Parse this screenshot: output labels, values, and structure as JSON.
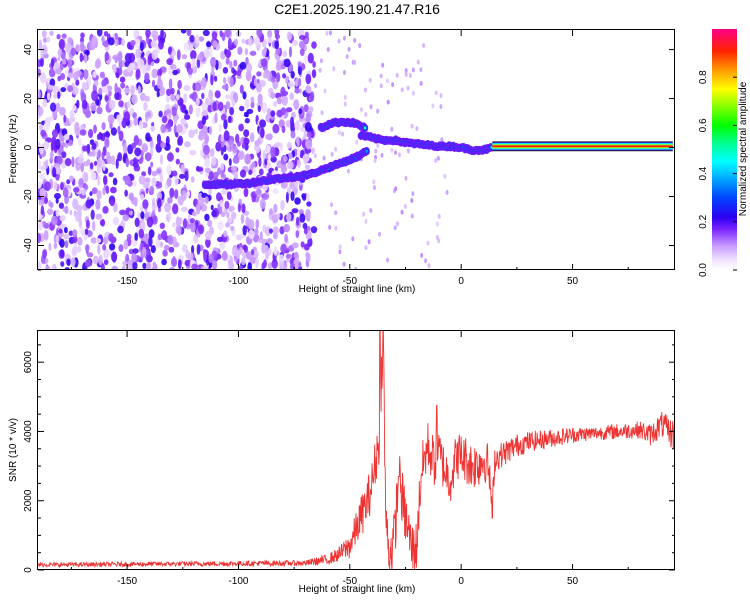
{
  "title": "C2E1.2025.190.21.47.R16",
  "chart_data": [
    {
      "type": "heatmap",
      "xlabel": "Height of straight line (km)",
      "ylabel": "Frequency (Hz)",
      "xlim": [
        -190,
        96
      ],
      "ylim": [
        -50,
        48
      ],
      "x_ticks": [
        -150,
        -100,
        -50,
        0,
        50
      ],
      "x_tick_labels": [
        "-150",
        "-100",
        "-50",
        "0",
        "50"
      ],
      "y_ticks": [
        -40,
        -20,
        0,
        20,
        40
      ],
      "y_tick_labels": [
        "-40",
        "-20",
        "0",
        "20",
        "40"
      ],
      "colorbar": {
        "label": "Normalized spectral amplitude",
        "range": [
          0,
          1
        ],
        "ticks": [
          0.0,
          0.2,
          0.4,
          0.6,
          0.8
        ],
        "tick_labels": [
          "0.0",
          "0.2",
          "0.4",
          "0.6",
          "0.8"
        ]
      },
      "noise_region_x": [
        -190,
        -66
      ],
      "trace_lower": {
        "x": [
          -115,
          -105,
          -95,
          -85,
          -75,
          -68,
          -62,
          -56,
          -50,
          -45,
          -42
        ],
        "y": [
          -15,
          -15,
          -14.5,
          -13,
          -12,
          -11,
          -9,
          -7,
          -5,
          -3,
          -1
        ]
      },
      "trace_upper": {
        "x": [
          -63,
          -58,
          -53,
          -48,
          -43
        ],
        "y": [
          8,
          10,
          10.5,
          10,
          8
        ]
      },
      "trace_merge": {
        "x": [
          -45,
          -40,
          -35,
          -30,
          -25,
          -20,
          -15,
          -10,
          -5,
          0,
          5,
          10,
          14
        ],
        "y": [
          5,
          4,
          3,
          3,
          2,
          1.5,
          1,
          0.5,
          0.5,
          0,
          -1,
          -1,
          0
        ]
      },
      "trace_constant": {
        "x_start": 14,
        "x_end": 95,
        "y": 0.5,
        "amplitude": 1.0
      }
    },
    {
      "type": "line",
      "xlabel": "Height of straight line (km)",
      "ylabel": "SNR (10 * v/v)",
      "xlim": [
        -190,
        96
      ],
      "ylim": [
        0,
        6900
      ],
      "x_ticks": [
        -150,
        -100,
        -50,
        0,
        50
      ],
      "x_tick_labels": [
        "-150",
        "-100",
        "-50",
        "0",
        "50"
      ],
      "y_ticks": [
        0,
        2000,
        4000,
        6000
      ],
      "y_tick_labels": [
        "0",
        "2000",
        "4000",
        "6000"
      ],
      "color": "#ee3333",
      "envelope": {
        "x": [
          -190,
          -70,
          -60,
          -55,
          -50,
          -47,
          -44,
          -42,
          -40,
          -38,
          -37,
          -35,
          -34,
          -33,
          -32,
          -30,
          -28,
          -25,
          -22,
          -20,
          -18,
          -15,
          -12,
          -10,
          -8,
          -5,
          -2,
          0,
          2,
          5,
          8,
          10,
          12,
          14,
          15,
          20,
          25,
          30,
          40,
          50,
          60,
          70,
          80,
          85,
          90,
          95
        ],
        "y": [
          150,
          200,
          300,
          450,
          700,
          1200,
          1700,
          2000,
          2500,
          3300,
          3700,
          6900,
          1800,
          800,
          500,
          900,
          2700,
          1500,
          600,
          700,
          2800,
          3600,
          3100,
          3400,
          3000,
          2600,
          3300,
          3300,
          3200,
          3000,
          3100,
          3200,
          3100,
          1800,
          3200,
          3400,
          3600,
          3700,
          3800,
          3900,
          3950,
          4000,
          4050,
          3900,
          4200,
          3900
        ]
      },
      "noise_amplitude": {
        "x": [
          -190,
          -70,
          -55,
          -45,
          -35,
          -25,
          -10,
          10,
          15,
          30,
          60,
          80,
          95
        ],
        "y": [
          60,
          80,
          200,
          600,
          800,
          800,
          700,
          700,
          400,
          300,
          200,
          250,
          450
        ]
      },
      "spikes": [
        {
          "x": -36.5,
          "y": 6900
        },
        {
          "x": -11,
          "y": 4750
        },
        {
          "x": -28,
          "y": 2700
        },
        {
          "x": 14,
          "y": 1500
        }
      ]
    }
  ]
}
